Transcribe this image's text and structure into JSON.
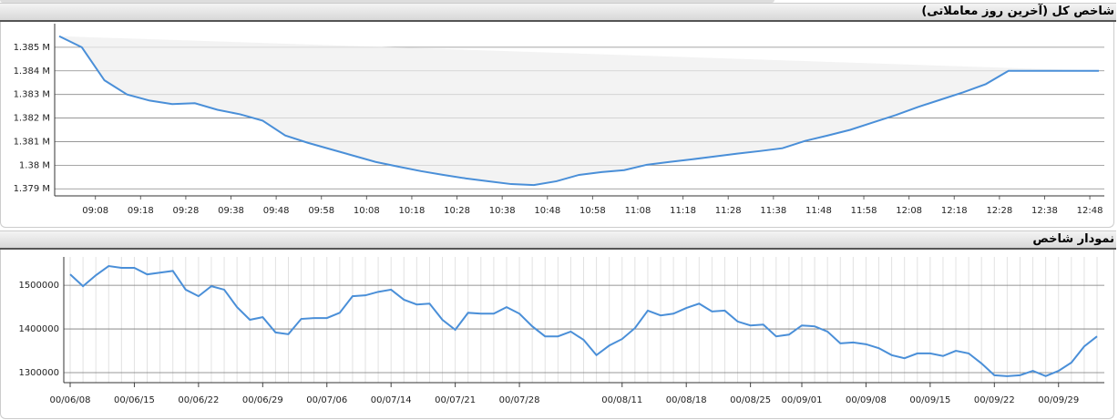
{
  "chart_data": [
    {
      "type": "line",
      "title": "شاخص کل (آخرین روز معاملاتی)",
      "color": "#4a8fd8",
      "grid": true,
      "x": [
        "09:00",
        "09:05",
        "09:10",
        "09:15",
        "09:20",
        "09:25",
        "09:30",
        "09:35",
        "09:40",
        "09:45",
        "09:50",
        "09:55",
        "10:00",
        "10:05",
        "10:10",
        "10:15",
        "10:20",
        "10:25",
        "10:30",
        "10:35",
        "10:40",
        "10:45",
        "10:50",
        "10:55",
        "11:00",
        "11:05",
        "11:10",
        "11:15",
        "11:20",
        "11:25",
        "11:30",
        "11:35",
        "11:40",
        "11:45",
        "11:50",
        "11:55",
        "12:00",
        "12:05",
        "12:10",
        "12:15",
        "12:20",
        "12:25",
        "12:30",
        "12:35",
        "12:40",
        "12:45",
        "12:50"
      ],
      "values": [
        1385470,
        1385000,
        1383600,
        1383000,
        1382740,
        1382590,
        1382630,
        1382350,
        1382160,
        1381890,
        1381260,
        1380950,
        1380680,
        1380410,
        1380140,
        1379940,
        1379750,
        1379590,
        1379440,
        1379320,
        1379200,
        1379160,
        1379320,
        1379590,
        1379710,
        1379790,
        1380020,
        1380140,
        1380250,
        1380370,
        1380490,
        1380600,
        1380720,
        1381030,
        1381260,
        1381500,
        1381810,
        1382120,
        1382470,
        1382780,
        1383090,
        1383440,
        1384000,
        1384000,
        1384000,
        1384000,
        1384000
      ],
      "xticks": [
        "09:08",
        "09:18",
        "09:28",
        "09:38",
        "09:48",
        "09:58",
        "10:08",
        "10:18",
        "10:28",
        "10:38",
        "10:48",
        "10:58",
        "11:08",
        "11:18",
        "11:28",
        "11:38",
        "11:48",
        "11:58",
        "12:08",
        "12:18",
        "12:28",
        "12:38",
        "12:48"
      ],
      "ylim": [
        1378700,
        1386000
      ],
      "yticks": [
        {
          "value": 1379000,
          "label": "1.379 M"
        },
        {
          "value": 1380000,
          "label": "1.38 M"
        },
        {
          "value": 1381000,
          "label": "1.381 M"
        },
        {
          "value": 1382000,
          "label": "1.382 M"
        },
        {
          "value": 1383000,
          "label": "1.383 M"
        },
        {
          "value": 1384000,
          "label": "1.384 M"
        },
        {
          "value": 1385000,
          "label": "1.385 M"
        }
      ]
    },
    {
      "type": "line",
      "title": "نمودار شاخص",
      "color": "#4a8fd8",
      "grid": true,
      "categories": [
        "00/06/08",
        null,
        null,
        null,
        null,
        "00/06/15",
        null,
        null,
        null,
        null,
        "00/06/22",
        null,
        null,
        null,
        null,
        "00/06/29",
        null,
        null,
        null,
        null,
        "00/07/06",
        null,
        null,
        null,
        null,
        "00/07/14",
        null,
        null,
        null,
        null,
        "00/07/21",
        null,
        null,
        null,
        null,
        "00/07/28",
        null,
        null,
        null,
        null,
        null,
        null,
        null,
        "00/08/11",
        null,
        null,
        null,
        null,
        "00/08/18",
        null,
        null,
        null,
        null,
        "00/08/25",
        null,
        null,
        null,
        "00/09/01",
        null,
        null,
        null,
        null,
        "00/09/08",
        null,
        null,
        null,
        null,
        "00/09/15",
        null,
        null,
        null,
        null,
        "00/09/22",
        null,
        null,
        null,
        null,
        "00/09/29",
        null,
        null,
        null
      ],
      "values": [
        1525000,
        1498000,
        1523000,
        1544000,
        1540000,
        1540000,
        1525000,
        1529000,
        1533000,
        1490000,
        1475000,
        1498000,
        1490000,
        1450000,
        1421000,
        1427000,
        1392000,
        1388000,
        1423000,
        1425000,
        1425000,
        1437000,
        1475000,
        1477000,
        1485000,
        1490000,
        1467000,
        1456000,
        1458000,
        1421000,
        1398000,
        1437000,
        1435000,
        1435000,
        1450000,
        1435000,
        1406000,
        1383000,
        1383000,
        1394000,
        1375000,
        1340000,
        1362000,
        1377000,
        1402000,
        1442000,
        1431000,
        1435000,
        1448000,
        1458000,
        1440000,
        1442000,
        1417000,
        1408000,
        1410000,
        1383000,
        1387000,
        1408000,
        1406000,
        1394000,
        1367000,
        1369000,
        1365000,
        1356000,
        1340000,
        1333000,
        1344000,
        1344000,
        1338000,
        1350000,
        1344000,
        1321000,
        1294000,
        1292000,
        1294000,
        1304000,
        1292000,
        1304000,
        1323000,
        1360000,
        1383000
      ],
      "ylim": [
        1277000,
        1565000
      ],
      "yticks": [
        1300000,
        1400000,
        1500000
      ]
    }
  ]
}
